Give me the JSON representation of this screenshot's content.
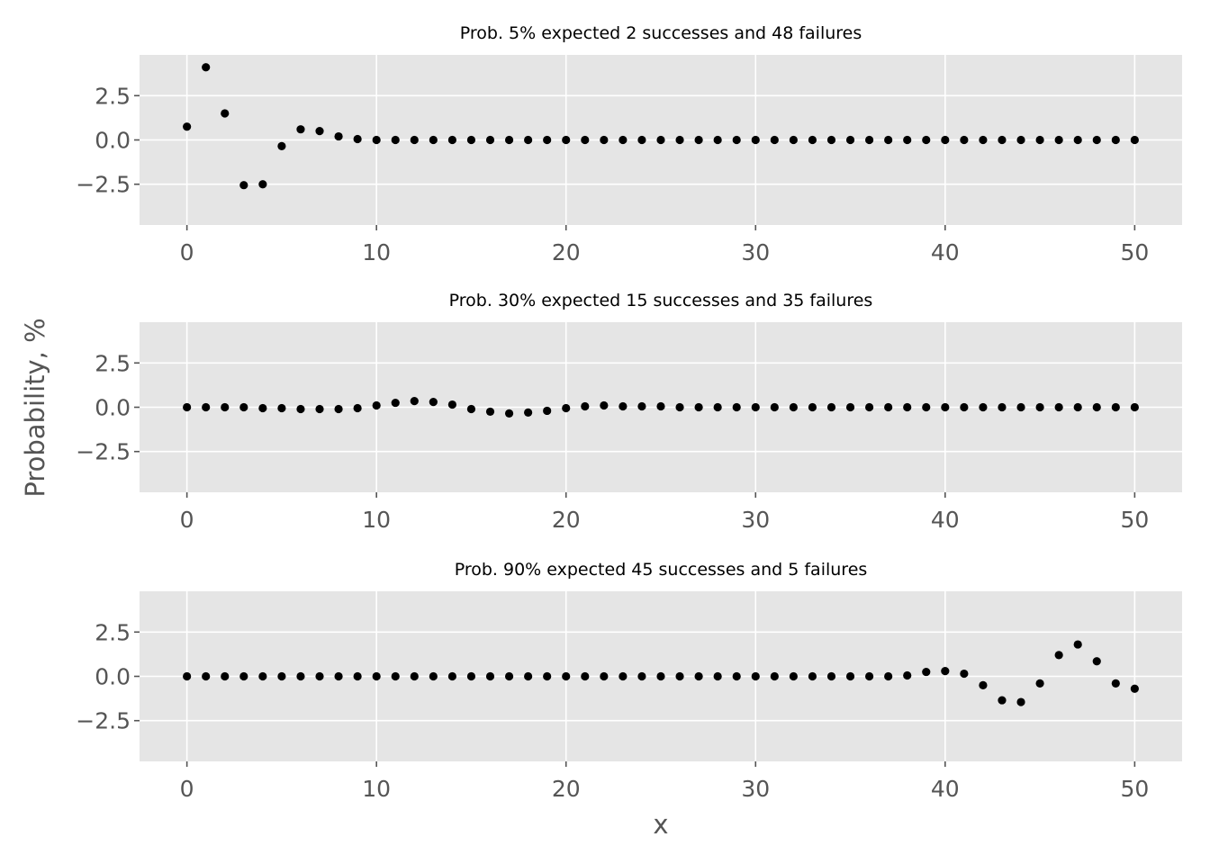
{
  "figure": {
    "xlabel": "x",
    "ylabel": "Probability, %"
  },
  "style": {
    "panel_bg": "#e5e5e5",
    "grid": "#ffffff",
    "tick_label_color": "#555555",
    "title_color": "#000000",
    "marker_color": "#000000"
  },
  "chart_data": [
    {
      "type": "scatter",
      "title": "Prob. 5% expected 2 successes and 48 failures",
      "xlabel": "",
      "ylabel": "",
      "xlim": [
        -2.5,
        52.5
      ],
      "ylim": [
        -4.8,
        4.8
      ],
      "xticks": [
        0,
        10,
        20,
        30,
        40,
        50
      ],
      "xtick_labels": [
        "0",
        "10",
        "20",
        "30",
        "40",
        "50"
      ],
      "yticks": [
        2.5,
        0.0,
        -2.5
      ],
      "ytick_labels": [
        "2.5",
        "0.0",
        "−2.5"
      ],
      "grid": true,
      "x": [
        0,
        1,
        2,
        3,
        4,
        5,
        6,
        7,
        8,
        9,
        10,
        11,
        12,
        13,
        14,
        15,
        16,
        17,
        18,
        19,
        20,
        21,
        22,
        23,
        24,
        25,
        26,
        27,
        28,
        29,
        30,
        31,
        32,
        33,
        34,
        35,
        36,
        37,
        38,
        39,
        40,
        41,
        42,
        43,
        44,
        45,
        46,
        47,
        48,
        49,
        50
      ],
      "y": [
        0.75,
        4.1,
        1.5,
        -2.55,
        -2.5,
        -0.35,
        0.6,
        0.5,
        0.2,
        0.05,
        0,
        0,
        0,
        0,
        0,
        0,
        0,
        0,
        0,
        0,
        0,
        0,
        0,
        0,
        0,
        0,
        0,
        0,
        0,
        0,
        0,
        0,
        0,
        0,
        0,
        0,
        0,
        0,
        0,
        0,
        0,
        0,
        0,
        0,
        0,
        0,
        0,
        0,
        0,
        0,
        0
      ]
    },
    {
      "type": "scatter",
      "title": "Prob. 30% expected 15 successes and 35 failures",
      "xlabel": "",
      "ylabel": "",
      "xlim": [
        -2.5,
        52.5
      ],
      "ylim": [
        -4.8,
        4.8
      ],
      "xticks": [
        0,
        10,
        20,
        30,
        40,
        50
      ],
      "xtick_labels": [
        "0",
        "10",
        "20",
        "30",
        "40",
        "50"
      ],
      "yticks": [
        2.5,
        0.0,
        -2.5
      ],
      "ytick_labels": [
        "2.5",
        "0.0",
        "−2.5"
      ],
      "grid": true,
      "x": [
        0,
        1,
        2,
        3,
        4,
        5,
        6,
        7,
        8,
        9,
        10,
        11,
        12,
        13,
        14,
        15,
        16,
        17,
        18,
        19,
        20,
        21,
        22,
        23,
        24,
        25,
        26,
        27,
        28,
        29,
        30,
        31,
        32,
        33,
        34,
        35,
        36,
        37,
        38,
        39,
        40,
        41,
        42,
        43,
        44,
        45,
        46,
        47,
        48,
        49,
        50
      ],
      "y": [
        0,
        0,
        0,
        0,
        -0.05,
        -0.05,
        -0.1,
        -0.1,
        -0.1,
        -0.05,
        0.1,
        0.25,
        0.35,
        0.3,
        0.15,
        -0.1,
        -0.25,
        -0.35,
        -0.3,
        -0.2,
        -0.05,
        0.05,
        0.1,
        0.05,
        0.05,
        0.05,
        0,
        0,
        0,
        0,
        0,
        0,
        0,
        0,
        0,
        0,
        0,
        0,
        0,
        0,
        0,
        0,
        0,
        0,
        0,
        0,
        0,
        0,
        0,
        0,
        0
      ]
    },
    {
      "type": "scatter",
      "title": "Prob. 90% expected 45 successes and 5 failures",
      "xlabel": "x",
      "ylabel": "",
      "xlim": [
        -2.5,
        52.5
      ],
      "ylim": [
        -4.8,
        4.8
      ],
      "xticks": [
        0,
        10,
        20,
        30,
        40,
        50
      ],
      "xtick_labels": [
        "0",
        "10",
        "20",
        "30",
        "40",
        "50"
      ],
      "yticks": [
        2.5,
        0.0,
        -2.5
      ],
      "ytick_labels": [
        "2.5",
        "0.0",
        "−2.5"
      ],
      "grid": true,
      "x": [
        0,
        1,
        2,
        3,
        4,
        5,
        6,
        7,
        8,
        9,
        10,
        11,
        12,
        13,
        14,
        15,
        16,
        17,
        18,
        19,
        20,
        21,
        22,
        23,
        24,
        25,
        26,
        27,
        28,
        29,
        30,
        31,
        32,
        33,
        34,
        35,
        36,
        37,
        38,
        39,
        40,
        41,
        42,
        43,
        44,
        45,
        46,
        47,
        48,
        49,
        50
      ],
      "y": [
        0,
        0,
        0,
        0,
        0,
        0,
        0,
        0,
        0,
        0,
        0,
        0,
        0,
        0,
        0,
        0,
        0,
        0,
        0,
        0,
        0,
        0,
        0,
        0,
        0,
        0,
        0,
        0,
        0,
        0,
        0,
        0,
        0,
        0,
        0,
        0,
        0,
        0,
        0.05,
        0.25,
        0.3,
        0.15,
        -0.5,
        -1.35,
        -1.45,
        -0.4,
        1.2,
        1.8,
        0.85,
        -0.4,
        -0.7
      ]
    }
  ]
}
